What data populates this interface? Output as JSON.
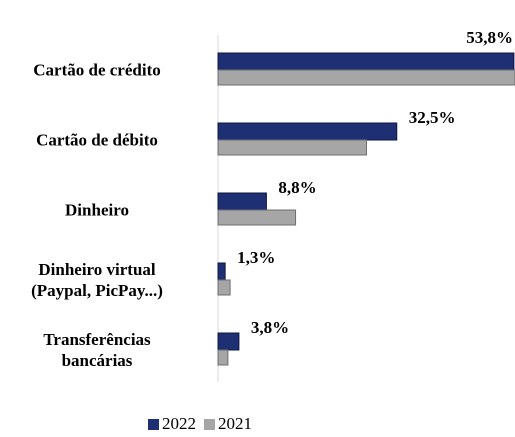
{
  "chart_data": {
    "type": "bar",
    "orientation": "horizontal",
    "categories": [
      "Cartão de crédito",
      "Cartão de débito",
      "Dinheiro",
      "Dinheiro virtual\n(Paypal, PicPay...)",
      "Transferências\nbancárias"
    ],
    "series": [
      {
        "name": "2022",
        "color": "#1f2f73",
        "values": [
          53.8,
          32.5,
          8.8,
          1.3,
          3.8
        ],
        "value_labels": [
          "53,8%",
          "32,5%",
          "8,8%",
          "1,3%",
          "3,8%"
        ]
      },
      {
        "name": "2021",
        "color": "#a6a6a6",
        "values": [
          54,
          27,
          14.1,
          2.2,
          1.8
        ]
      }
    ],
    "xlim": [
      0,
      54
    ],
    "legend": "bottom"
  }
}
